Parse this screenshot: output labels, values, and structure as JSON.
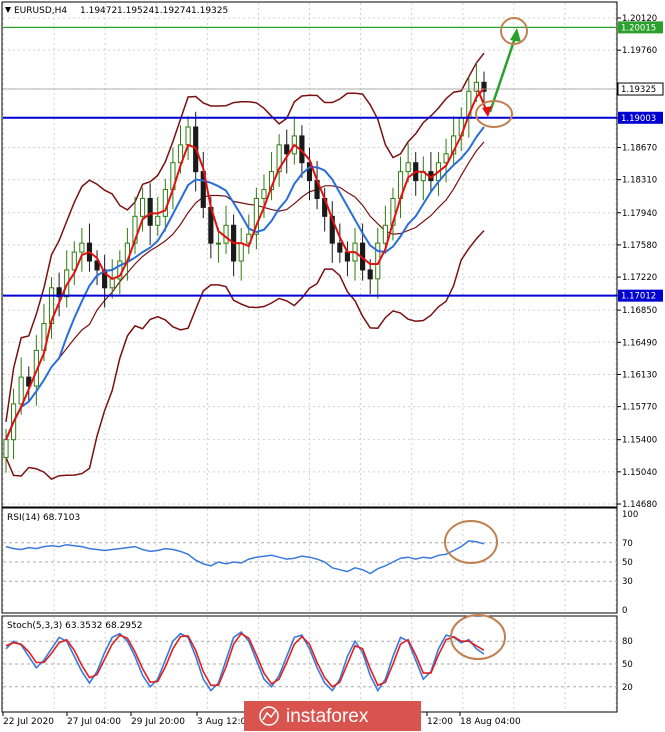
{
  "colors": {
    "bull": "#2e7d0f",
    "bear": "#1a1a1a",
    "ma_red": "#e01010",
    "ma_blue": "#2a6ed8",
    "bands": "#7a1010",
    "level": "#0000d0",
    "target": "#2ca02c",
    "highlight": "#c08050",
    "stoch_signal": "#e02020",
    "stoch_main": "#3a7ae0",
    "logo_bg": "#d9534f"
  },
  "chart_data": [
    {
      "type": "candlestick",
      "title": "EURUSD,H4",
      "ohlc_readout": [
        "1.19472",
        "1.19524",
        "1.19274",
        "1.19325"
      ],
      "ylim": [
        1.1468,
        1.2012
      ],
      "y_ticks": [
        "1.20120",
        "1.19760",
        "1.19325",
        "1.19003",
        "1.18670",
        "1.18310",
        "1.17940",
        "1.17580",
        "1.17220",
        "1.17012",
        "1.16850",
        "1.16490",
        "1.16130",
        "1.15770",
        "1.15400",
        "1.15040",
        "1.14680"
      ],
      "levels": [
        {
          "name": "resistance",
          "value": 1.19003,
          "label": "1.19003"
        },
        {
          "name": "support",
          "value": 1.17012,
          "label": "1.17012"
        },
        {
          "name": "target",
          "value": 1.20015,
          "label": "1.20015"
        }
      ],
      "current_price": {
        "value": 1.19325,
        "label": "1.19325"
      },
      "grid": true,
      "indicators": [
        "moving_average_fast",
        "moving_average_slow",
        "bollinger_bands"
      ],
      "close": [
        1.154,
        1.158,
        1.161,
        1.16,
        1.164,
        1.167,
        1.171,
        1.17,
        1.173,
        1.175,
        1.176,
        1.174,
        1.173,
        1.171,
        1.172,
        1.174,
        1.176,
        1.179,
        1.181,
        1.178,
        1.179,
        1.182,
        1.185,
        1.187,
        1.189,
        1.184,
        1.18,
        1.176,
        1.176,
        1.178,
        1.174,
        1.176,
        1.177,
        1.181,
        1.182,
        1.184,
        1.187,
        1.186,
        1.188,
        1.185,
        1.183,
        1.181,
        1.179,
        1.176,
        1.175,
        1.174,
        1.176,
        1.173,
        1.172,
        1.176,
        1.178,
        1.181,
        1.184,
        1.185,
        1.183,
        1.184,
        1.183,
        1.185,
        1.186,
        1.188,
        1.19,
        1.193,
        1.194,
        1.193
      ]
    },
    {
      "type": "line",
      "title": "RSI(14) 68.7103",
      "ylim": [
        0,
        100
      ],
      "y_ticks": [
        "100",
        "70",
        "50",
        "30",
        "0"
      ],
      "levels": [
        70,
        50,
        30
      ],
      "series": [
        {
          "values": [
            66,
            64,
            63,
            65,
            64,
            66,
            67,
            66,
            68,
            67,
            66,
            64,
            63,
            62,
            63,
            64,
            65,
            66,
            63,
            61,
            62,
            64,
            63,
            61,
            58,
            52,
            48,
            46,
            50,
            48,
            50,
            49,
            53,
            55,
            56,
            57,
            55,
            53,
            54,
            56,
            55,
            53,
            50,
            44,
            42,
            40,
            44,
            42,
            38,
            43,
            46,
            50,
            54,
            55,
            53,
            55,
            54,
            57,
            58,
            62,
            66,
            72,
            71,
            69
          ]
        }
      ]
    },
    {
      "type": "line",
      "title": "Stoch(5,3,3) 63.3532 68.2952",
      "ylim": [
        0,
        100
      ],
      "y_ticks": [
        "80",
        "50",
        "20"
      ],
      "levels": [
        80,
        50,
        20
      ],
      "series": [
        {
          "values": [
            70,
            80,
            75,
            60,
            45,
            55,
            70,
            85,
            80,
            60,
            40,
            25,
            40,
            65,
            85,
            90,
            80,
            60,
            35,
            20,
            30,
            55,
            80,
            90,
            85,
            60,
            30,
            15,
            25,
            55,
            85,
            92,
            80,
            55,
            30,
            20,
            35,
            60,
            85,
            88,
            70,
            45,
            25,
            15,
            30,
            60,
            80,
            65,
            35,
            15,
            30,
            60,
            85,
            80,
            55,
            30,
            40,
            70,
            88,
            85,
            78,
            82,
            70,
            63
          ]
        },
        {
          "values": [
            74,
            78,
            76,
            66,
            52,
            52,
            64,
            78,
            82,
            68,
            48,
            32,
            36,
            56,
            76,
            88,
            84,
            66,
            44,
            26,
            27,
            46,
            70,
            86,
            87,
            68,
            40,
            22,
            22,
            46,
            76,
            90,
            84,
            62,
            38,
            24,
            30,
            52,
            76,
            86,
            76,
            52,
            32,
            20,
            26,
            50,
            74,
            70,
            44,
            22,
            26,
            50,
            76,
            82,
            62,
            38,
            38,
            62,
            82,
            86,
            80,
            80,
            74,
            68
          ]
        }
      ]
    }
  ],
  "x_axis": {
    "tick_labels": [
      "22 Jul 2020",
      "27 Jul 04:00",
      "29 Jul 20:00",
      "3 Aug 12:00",
      "12:00",
      "18 Aug 04:00"
    ]
  },
  "watermark": "instaforex"
}
